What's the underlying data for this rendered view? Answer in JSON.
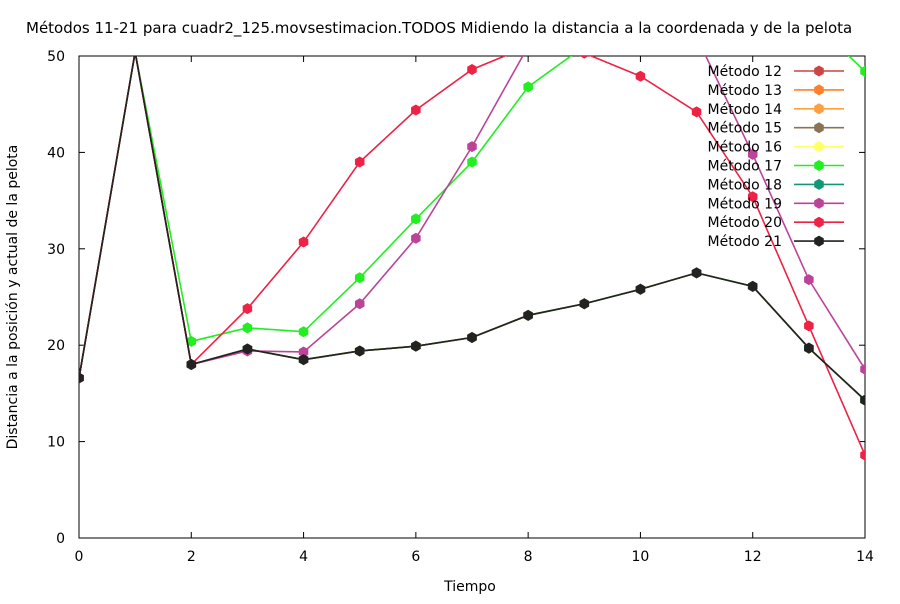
{
  "chart_data": {
    "type": "line",
    "title": "Métodos 11-21 para cuadr2_125.movsestimacion.TODOS Midiendo la distancia a la coordenada y de la pelota",
    "xlabel": "Tiempo",
    "ylabel": "Distancia a la posición y actual de la pelota",
    "xlim": [
      0,
      14
    ],
    "ylim": [
      0,
      50
    ],
    "xticks": [
      0,
      2,
      4,
      6,
      8,
      10,
      12,
      14
    ],
    "yticks": [
      0,
      10,
      20,
      30,
      40,
      50
    ],
    "xtick_labels": [
      "0",
      "2",
      "4",
      "6",
      "8",
      "10",
      "12",
      "14"
    ],
    "ytick_labels": [
      "0",
      "10",
      "20",
      "30",
      "40",
      "50"
    ],
    "grid": false,
    "legend_position": "top-right",
    "x": [
      0,
      1,
      2,
      3,
      4,
      5,
      6,
      7,
      8,
      9,
      10,
      11,
      12,
      13,
      14
    ],
    "series": [
      {
        "name": "Método 12",
        "color": "#cc4444",
        "values": [
          16.6,
          50.4,
          18.0,
          19.6,
          18.5,
          19.4,
          19.9,
          20.8,
          23.1,
          24.3,
          25.8,
          27.5,
          26.1,
          19.7,
          14.3
        ]
      },
      {
        "name": "Método 13",
        "color": "#ff7f2a",
        "values": [
          16.6,
          50.4,
          18.0,
          19.6,
          18.5,
          19.4,
          19.9,
          20.8,
          23.1,
          24.3,
          25.8,
          27.5,
          26.1,
          19.7,
          14.3
        ]
      },
      {
        "name": "Método 14",
        "color": "#ffa040",
        "values": [
          16.6,
          50.4,
          18.0,
          19.6,
          18.5,
          19.4,
          19.9,
          20.8,
          23.1,
          24.3,
          25.8,
          27.5,
          26.1,
          19.7,
          14.3
        ]
      },
      {
        "name": "Método 15",
        "color": "#8b7355",
        "values": [
          16.6,
          50.4,
          18.0,
          19.6,
          18.5,
          19.4,
          19.9,
          20.8,
          23.1,
          24.3,
          25.8,
          27.5,
          26.1,
          19.7,
          14.3
        ]
      },
      {
        "name": "Método 16",
        "color": "#ffff66",
        "values": [
          16.6,
          50.4,
          18.0,
          19.6,
          18.5,
          19.4,
          19.9,
          20.8,
          23.1,
          24.3,
          25.8,
          27.5,
          26.1,
          19.7,
          14.3
        ]
      },
      {
        "name": "Método 17",
        "color": "#22ee22",
        "values": [
          16.6,
          50.4,
          20.4,
          21.8,
          21.4,
          27.0,
          33.1,
          39.0,
          46.8,
          51.0,
          53.0,
          54.0,
          54.0,
          54.0,
          48.4
        ]
      },
      {
        "name": "Método 18",
        "color": "#119977",
        "values": [
          16.6,
          50.4,
          18.0,
          19.6,
          18.5,
          19.4,
          19.9,
          20.8,
          23.1,
          24.3,
          25.8,
          27.5,
          26.1,
          19.7,
          14.3
        ]
      },
      {
        "name": "Método 19",
        "color": "#bb4499",
        "values": [
          16.6,
          50.4,
          18.0,
          19.4,
          19.3,
          24.3,
          31.1,
          40.6,
          51.0,
          55.0,
          60.0,
          52.0,
          39.8,
          26.8,
          17.5
        ]
      },
      {
        "name": "Método 20",
        "color": "#ee2244",
        "values": [
          16.6,
          50.4,
          18.0,
          23.8,
          30.7,
          39.0,
          44.4,
          48.6,
          51.0,
          50.3,
          47.9,
          44.2,
          35.4,
          22.0,
          8.6
        ]
      },
      {
        "name": "Método 21",
        "color": "#222222",
        "values": [
          16.6,
          50.4,
          18.0,
          19.6,
          18.5,
          19.4,
          19.9,
          20.8,
          23.1,
          24.3,
          25.8,
          27.5,
          26.1,
          19.7,
          14.3
        ]
      }
    ]
  }
}
